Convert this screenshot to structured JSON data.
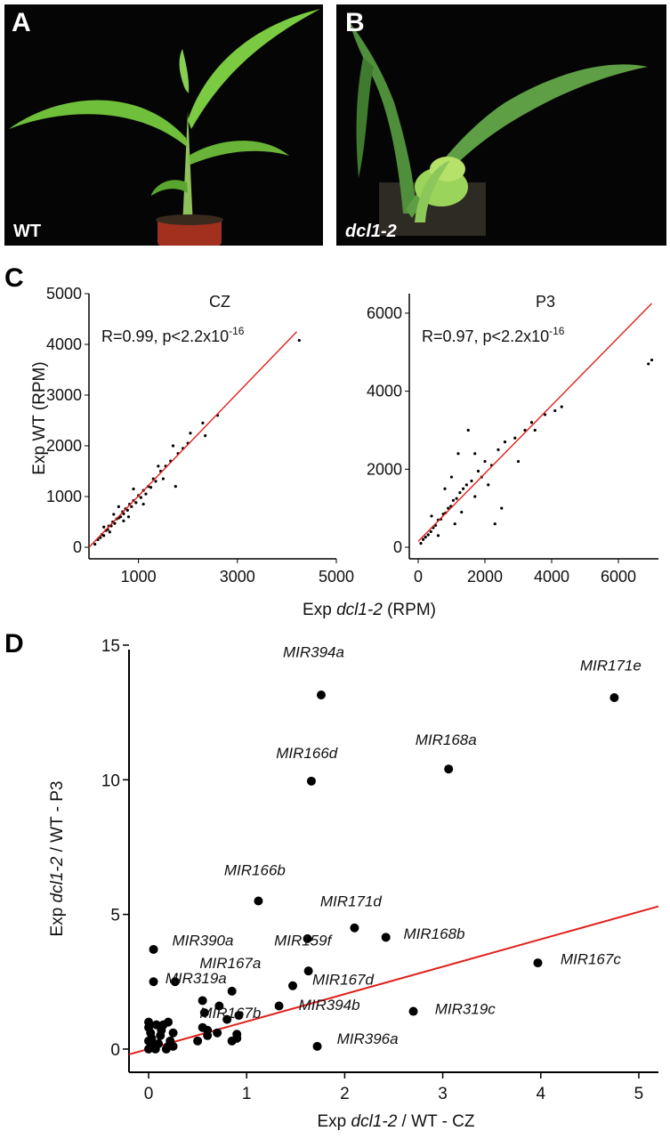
{
  "panels": {
    "A": {
      "letter": "A",
      "caption": "WT"
    },
    "B": {
      "letter": "B",
      "caption": "dcl1-2"
    },
    "C": {
      "letter": "C"
    },
    "D": {
      "letter": "D"
    }
  },
  "colors": {
    "regression_line": "#e0201b",
    "points": "#000000",
    "photo_bg": "#050505",
    "leaf": "#6fbf3a"
  },
  "chart_data": [
    {
      "id": "C-CZ",
      "type": "scatter",
      "title": "CZ",
      "annotation_prefix": "R=0.99, p<2.2x10",
      "annotation_exp": "-16",
      "ylabel": "Exp WT (RPM)",
      "xlabel_prefix": "Exp ",
      "xlabel_italic": "dcl1-2",
      "xlabel_suffix": " (RPM)",
      "xlim": [
        0,
        5000
      ],
      "ylim": [
        0,
        5000
      ],
      "xticks": [
        1000,
        3000,
        5000
      ],
      "yticks": [
        0,
        1000,
        2000,
        3000,
        4000,
        5000
      ],
      "fit": [
        [
          0,
          0
        ],
        [
          4200,
          4250
        ]
      ],
      "points": [
        [
          120,
          60
        ],
        [
          180,
          150
        ],
        [
          230,
          190
        ],
        [
          260,
          250
        ],
        [
          300,
          230
        ],
        [
          340,
          330
        ],
        [
          380,
          350
        ],
        [
          400,
          420
        ],
        [
          450,
          420
        ],
        [
          480,
          500
        ],
        [
          520,
          470
        ],
        [
          560,
          560
        ],
        [
          600,
          580
        ],
        [
          640,
          600
        ],
        [
          680,
          700
        ],
        [
          700,
          660
        ],
        [
          740,
          760
        ],
        [
          780,
          730
        ],
        [
          820,
          850
        ],
        [
          860,
          800
        ],
        [
          900,
          920
        ],
        [
          950,
          880
        ],
        [
          1000,
          1020
        ],
        [
          1050,
          980
        ],
        [
          1100,
          1120
        ],
        [
          1150,
          1050
        ],
        [
          1200,
          1200
        ],
        [
          1250,
          1180
        ],
        [
          1300,
          1350
        ],
        [
          1350,
          1300
        ],
        [
          1450,
          1500
        ],
        [
          1550,
          1600
        ],
        [
          1650,
          1700
        ],
        [
          1700,
          2000
        ],
        [
          1750,
          1200
        ],
        [
          1800,
          1850
        ],
        [
          1900,
          1950
        ],
        [
          2000,
          2050
        ],
        [
          2300,
          2450
        ],
        [
          2350,
          2200
        ],
        [
          2600,
          2600
        ],
        [
          4250,
          4080
        ],
        [
          600,
          800
        ],
        [
          800,
          600
        ],
        [
          500,
          650
        ],
        [
          700,
          520
        ],
        [
          900,
          1150
        ],
        [
          1100,
          850
        ],
        [
          300,
          400
        ],
        [
          420,
          300
        ],
        [
          1500,
          1350
        ],
        [
          1400,
          1600
        ],
        [
          2050,
          2250
        ]
      ]
    },
    {
      "id": "C-P3",
      "type": "scatter",
      "title": "P3",
      "annotation_prefix": "R=0.97, p<2.2x10",
      "annotation_exp": "-16",
      "xlim": [
        0,
        7200
      ],
      "ylim": [
        0,
        6500
      ],
      "xticks": [
        0,
        2000,
        4000,
        6000
      ],
      "yticks": [
        0,
        2000,
        4000,
        6000
      ],
      "fit": [
        [
          0,
          150
        ],
        [
          7000,
          6250
        ]
      ],
      "points": [
        [
          80,
          100
        ],
        [
          150,
          200
        ],
        [
          220,
          260
        ],
        [
          300,
          320
        ],
        [
          380,
          400
        ],
        [
          450,
          500
        ],
        [
          520,
          560
        ],
        [
          600,
          700
        ],
        [
          680,
          720
        ],
        [
          750,
          850
        ],
        [
          820,
          880
        ],
        [
          900,
          1000
        ],
        [
          980,
          1050
        ],
        [
          1050,
          1200
        ],
        [
          1150,
          1250
        ],
        [
          1250,
          1400
        ],
        [
          1350,
          1500
        ],
        [
          1450,
          1600
        ],
        [
          1500,
          3000
        ],
        [
          1600,
          1700
        ],
        [
          1700,
          1300
        ],
        [
          1800,
          1950
        ],
        [
          1900,
          1800
        ],
        [
          2000,
          2200
        ],
        [
          2200,
          2100
        ],
        [
          2400,
          2500
        ],
        [
          2500,
          1000
        ],
        [
          2600,
          2700
        ],
        [
          2900,
          2800
        ],
        [
          3000,
          2200
        ],
        [
          3200,
          3000
        ],
        [
          3400,
          3200
        ],
        [
          3500,
          3000
        ],
        [
          3800,
          3400
        ],
        [
          4100,
          3500
        ],
        [
          4300,
          3600
        ],
        [
          6900,
          4700
        ],
        [
          7000,
          4800
        ],
        [
          2300,
          600
        ],
        [
          1200,
          2400
        ],
        [
          1000,
          1800
        ],
        [
          800,
          1500
        ],
        [
          600,
          300
        ],
        [
          400,
          800
        ],
        [
          1300,
          900
        ],
        [
          1700,
          2400
        ],
        [
          2100,
          1600
        ],
        [
          1100,
          600
        ]
      ]
    },
    {
      "id": "D",
      "type": "scatter",
      "ylabel_prefix": "Exp ",
      "ylabel_italic": "dcl1-2",
      "ylabel_suffix": " / WT - P3",
      "xlabel_prefix": "Exp ",
      "xlabel_italic": "dcl1-2",
      "xlabel_suffix": " / WT - CZ",
      "xlim": [
        -0.2,
        5.2
      ],
      "ylim": [
        -0.3,
        15
      ],
      "xticks": [
        0,
        1,
        2,
        3,
        4,
        5
      ],
      "yticks": [
        0,
        5,
        10,
        15
      ],
      "fit": [
        [
          -0.2,
          -0.2
        ],
        [
          5.2,
          5.3
        ]
      ],
      "labeled_points": [
        {
          "label": "MIR394a",
          "x": 1.76,
          "y": 13.15,
          "lx": 1.37,
          "ly": 14.55
        },
        {
          "label": "MIR171e",
          "x": 4.75,
          "y": 13.05,
          "lx": 4.4,
          "ly": 14.05
        },
        {
          "label": "MIR168a",
          "x": 3.06,
          "y": 10.4,
          "lx": 2.72,
          "ly": 11.3
        },
        {
          "label": "MIR166d",
          "x": 1.66,
          "y": 9.95,
          "lx": 1.3,
          "ly": 10.8
        },
        {
          "label": "MIR166b",
          "x": 1.12,
          "y": 5.5,
          "lx": 0.77,
          "ly": 6.45
        },
        {
          "label": "MIR171d",
          "x": 2.1,
          "y": 4.5,
          "lx": 1.75,
          "ly": 5.3
        },
        {
          "label": "MIR168b",
          "x": 2.42,
          "y": 4.15,
          "lx": 2.6,
          "ly": 4.1
        },
        {
          "label": "MIR159f",
          "x": 1.62,
          "y": 4.1,
          "lx": 1.28,
          "ly": 3.85
        },
        {
          "label": "MIR390a",
          "x": 0.05,
          "y": 3.7,
          "lx": 0.24,
          "ly": 3.85
        },
        {
          "label": "MIR167a",
          "x": 0.85,
          "y": 2.15,
          "lx": 0.52,
          "ly": 3.0
        },
        {
          "label": "MIR319a",
          "x": 0.27,
          "y": 2.5,
          "lx": 0.17,
          "ly": 2.45
        },
        {
          "label": "MIR167c",
          "x": 3.97,
          "y": 3.2,
          "lx": 4.2,
          "ly": 3.15
        },
        {
          "label": "MIR167d",
          "x": 1.63,
          "y": 2.9,
          "lx": 1.67,
          "ly": 2.4
        },
        {
          "label": "MIR394b",
          "x": 1.33,
          "y": 1.6,
          "lx": 1.53,
          "ly": 1.45
        },
        {
          "label": "MIR167b",
          "x": 0.72,
          "y": 1.6,
          "lx": 0.52,
          "ly": 1.15
        },
        {
          "label": "MIR319c",
          "x": 2.7,
          "y": 1.4,
          "lx": 2.92,
          "ly": 1.3
        },
        {
          "label": "MIR396a",
          "x": 1.72,
          "y": 0.1,
          "lx": 1.92,
          "ly": 0.2
        }
      ],
      "points": [
        [
          0.05,
          2.5
        ],
        [
          0.0,
          1.0
        ],
        [
          0.0,
          0.8
        ],
        [
          0.02,
          0.6
        ],
        [
          0.0,
          0.3
        ],
        [
          0.04,
          0.1
        ],
        [
          0.07,
          0.0
        ],
        [
          0.1,
          0.2
        ],
        [
          0.12,
          0.5
        ],
        [
          0.15,
          0.9
        ],
        [
          0.18,
          0.0
        ],
        [
          0.2,
          1.0
        ],
        [
          0.22,
          0.3
        ],
        [
          0.25,
          0.6
        ],
        [
          0.08,
          0.9
        ],
        [
          0.03,
          0.4
        ],
        [
          0.13,
          0.7
        ],
        [
          0.05,
          0.2
        ],
        [
          0.0,
          0.0
        ],
        [
          0.5,
          0.3
        ],
        [
          0.55,
          0.8
        ],
        [
          0.6,
          0.7
        ],
        [
          0.7,
          0.6
        ],
        [
          0.8,
          1.1
        ],
        [
          0.9,
          0.4
        ],
        [
          0.9,
          0.55
        ],
        [
          0.55,
          1.8
        ],
        [
          0.57,
          1.35
        ],
        [
          0.92,
          1.25
        ],
        [
          1.47,
          2.35
        ],
        [
          0.2,
          0.1
        ],
        [
          0.25,
          0.1
        ],
        [
          0.6,
          0.5
        ],
        [
          0.85,
          0.3
        ]
      ]
    }
  ]
}
